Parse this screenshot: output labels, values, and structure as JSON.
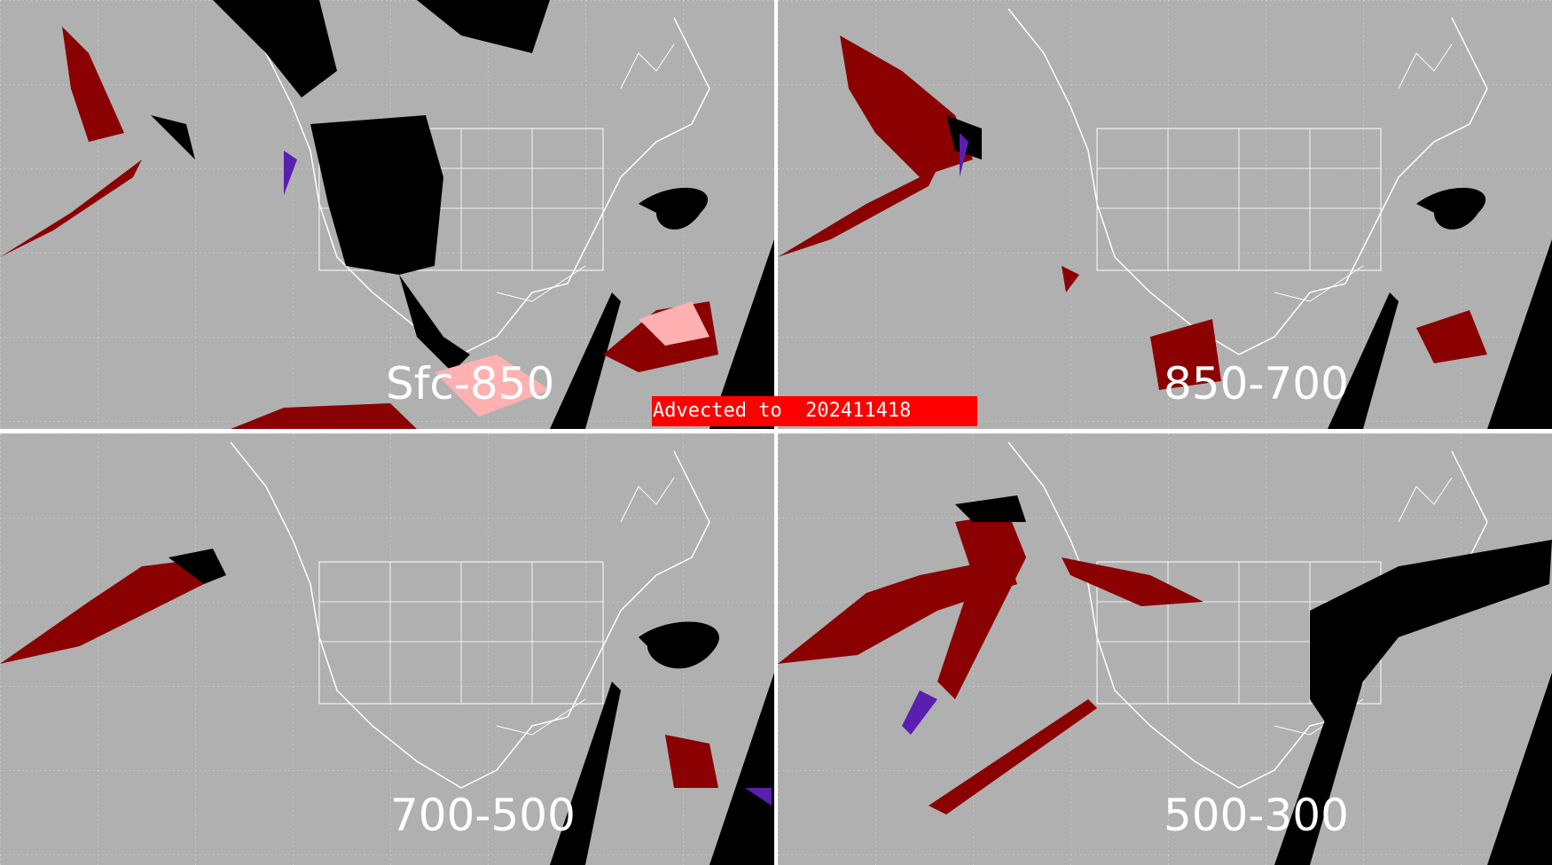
{
  "panels": [
    {
      "label": "Sfc-850"
    },
    {
      "label": "850-700"
    },
    {
      "label": "700-500"
    },
    {
      "label": "500-300"
    }
  ],
  "banner": {
    "text": "Advected to  202411418"
  },
  "colors": {
    "background": "#b0b0b0",
    "outline": "#ffffff",
    "dark_red": "#8b0000",
    "pink": "#ffb0b0",
    "black": "#000000",
    "purple": "#5a1fb0",
    "banner": "#ff0000"
  }
}
